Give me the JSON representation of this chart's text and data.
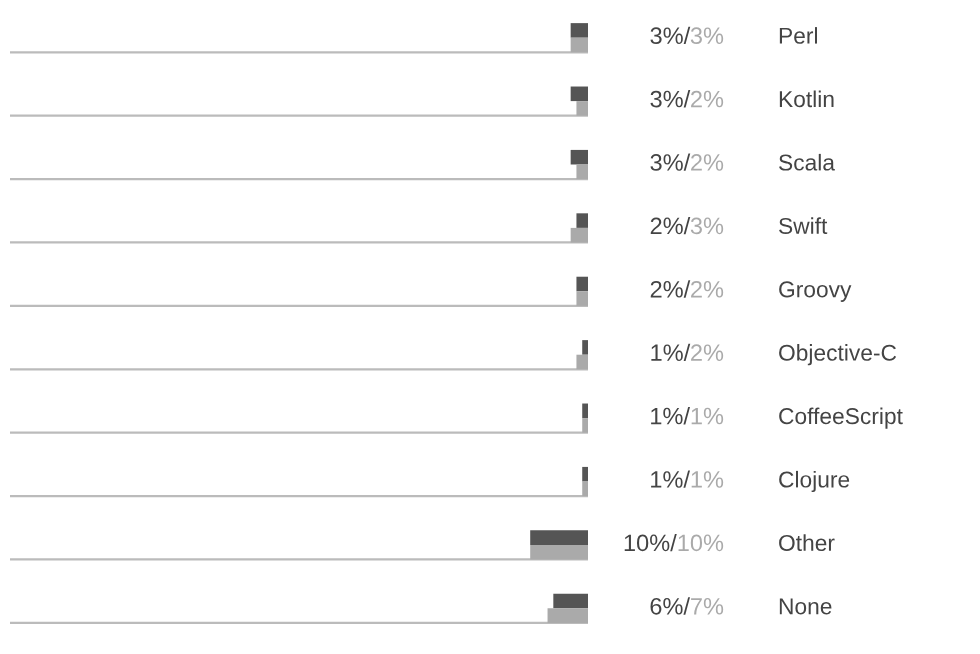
{
  "chart_data": {
    "type": "bar",
    "orientation": "horizontal",
    "categories": [
      "Perl",
      "Kotlin",
      "Scala",
      "Swift",
      "Groovy",
      "Objective-C",
      "CoffeeScript",
      "Clojure",
      "Other",
      "None"
    ],
    "series": [
      {
        "color": "#555555",
        "values": [
          3,
          3,
          3,
          2,
          2,
          1,
          1,
          1,
          10,
          6
        ],
        "value_labels": [
          "3%/",
          "3%/",
          "3%/",
          "2%/",
          "2%/",
          "1%/",
          "1%/",
          "1%/",
          "10%/",
          "6%/"
        ]
      },
      {
        "color": "#aaaaaa",
        "values": [
          3,
          2,
          2,
          3,
          2,
          2,
          1,
          1,
          10,
          7
        ],
        "value_labels": [
          "3%",
          "2%",
          "2%",
          "3%",
          "2%",
          "2%",
          "1%",
          "1%",
          "10%",
          "7%"
        ]
      }
    ],
    "xlim": [
      100,
      0
    ],
    "grid": "y",
    "legend": false
  }
}
